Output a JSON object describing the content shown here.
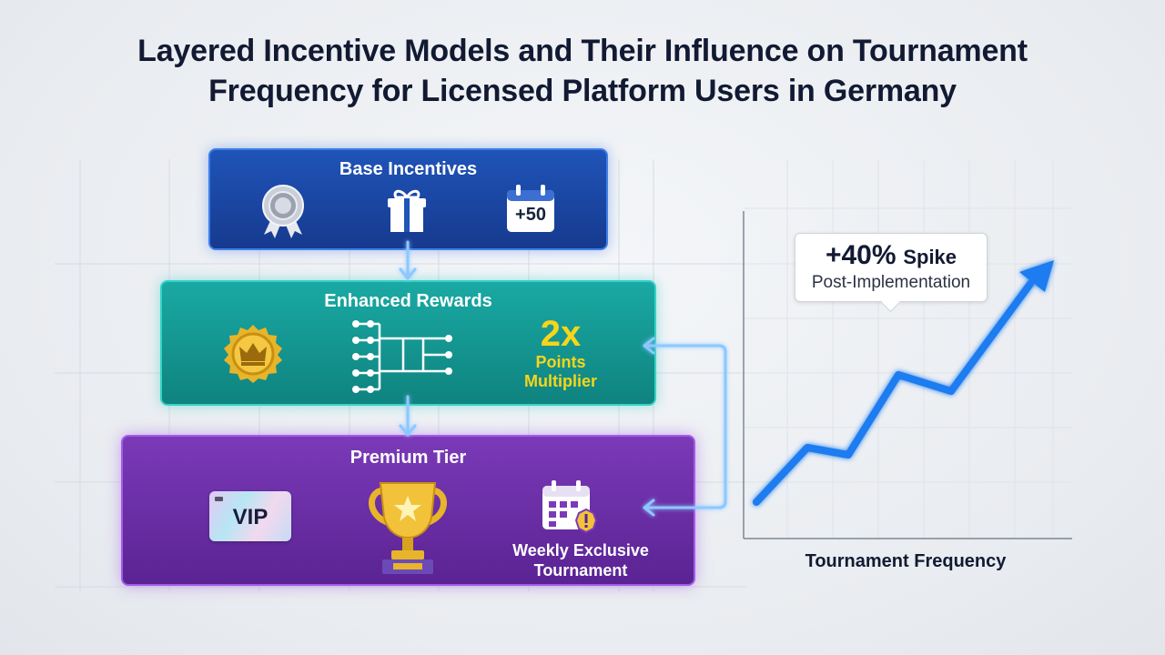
{
  "title": {
    "line1": "Layered Incentive Models and Their Influence on Tournament",
    "line2": "Frequency for Licensed Platform Users in Germany"
  },
  "layers": {
    "base": {
      "title": "Base Incentives",
      "icons": [
        "award-ribbon-icon",
        "gift-box-icon",
        "calendar-bonus-icon"
      ],
      "calendar_label": "+50",
      "color": "#1f54b8"
    },
    "enhanced": {
      "title": "Enhanced Rewards",
      "icons": [
        "crown-medal-icon",
        "bracket-tree-icon"
      ],
      "multiplier": "2x",
      "multiplier_line1": "Points",
      "multiplier_line2": "Multiplier",
      "color": "#1aa9a4"
    },
    "premium": {
      "title": "Premium Tier",
      "icons": [
        "vip-card-icon",
        "trophy-icon",
        "calendar-alert-icon"
      ],
      "vip_label": "VIP",
      "weekly_line1": "Weekly Exclusive",
      "weekly_line2": "Tournament",
      "color": "#7b3ab8"
    }
  },
  "chart": {
    "callout_value": "+40%",
    "callout_word": "Spike",
    "callout_sub": "Post-Implementation",
    "x_label": "Tournament Frequency",
    "line_color": "#1e7bf0"
  }
}
